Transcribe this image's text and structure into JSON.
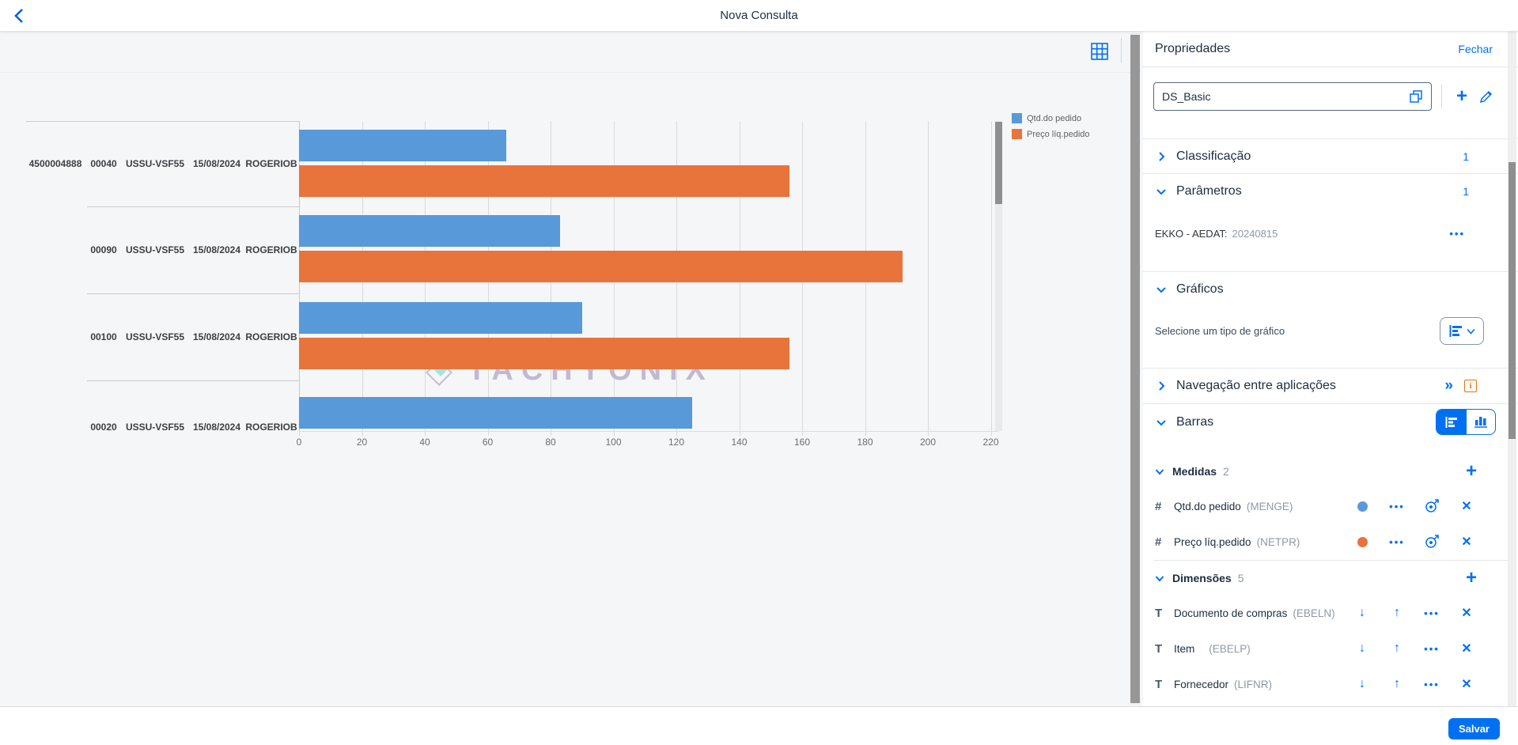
{
  "app_bar": {
    "title": "Nova Consulta"
  },
  "chart_data": {
    "type": "bar",
    "orientation": "horizontal",
    "x_axis": {
      "ticks": [
        0,
        20,
        40,
        60,
        80,
        100,
        120,
        140,
        160,
        180,
        200,
        220
      ],
      "max": 222,
      "grid": true
    },
    "legend": {
      "position": "top-right",
      "entries": [
        {
          "label": "Qtd.do pedido",
          "color": "#5899DA"
        },
        {
          "label": "Preço líq.pedido",
          "color": "#E8743B"
        }
      ]
    },
    "categories": [
      {
        "labels": [
          "4500004888",
          "00040",
          "USSU-VSF55",
          "15/08/2024",
          "ROGERIOB"
        ]
      },
      {
        "labels": [
          "",
          "00090",
          "USSU-VSF55",
          "15/08/2024",
          "ROGERIOB"
        ]
      },
      {
        "labels": [
          "",
          "00100",
          "USSU-VSF55",
          "15/08/2024",
          "ROGERIOB"
        ]
      },
      {
        "labels": [
          "",
          "00020",
          "USSU-VSF55",
          "15/08/2024",
          "ROGERIOB"
        ]
      }
    ],
    "series": [
      {
        "name": "Qtd.do pedido",
        "color": "#5899DA",
        "values": [
          66,
          83,
          90,
          125
        ]
      },
      {
        "name": "Preço líq.pedido",
        "color": "#E8743B",
        "values": [
          156,
          192,
          156,
          null
        ]
      }
    ],
    "watermark": "TACHYONIX"
  },
  "panel": {
    "title": "Propriedades",
    "close_label": "Fechar",
    "name_input": {
      "value": "DS_Basic"
    },
    "sections": {
      "classificacao": {
        "label": "Classificação",
        "count": "1"
      },
      "parametros": {
        "label": "Parâmetros",
        "count": "1",
        "items": [
          {
            "label": "EKKO - AEDAT:",
            "value": "20240815"
          }
        ]
      },
      "graficos": {
        "label": "Gráficos",
        "chart_type_label": "Selecione um tipo de gráfico"
      },
      "navegacao": {
        "label": "Navegação entre aplicações"
      },
      "barras": {
        "label": "Barras",
        "medidas": {
          "label": "Medidas",
          "count": "2",
          "items": [
            {
              "name": "Qtd.do pedido",
              "code": "(MENGE)",
              "color": "#5899DA"
            },
            {
              "name": "Preço líq.pedido",
              "code": "(NETPR)",
              "color": "#E8743B"
            }
          ]
        },
        "dimensoes": {
          "label": "Dimensões",
          "count": "5",
          "items": [
            {
              "name": "Documento de compras",
              "code": "(EBELN)"
            },
            {
              "name": "Item",
              "code": "(EBELP)"
            },
            {
              "name": "Fornecedor",
              "code": "(LIFNR)"
            }
          ]
        }
      }
    }
  },
  "footer": {
    "save_label": "Salvar"
  }
}
